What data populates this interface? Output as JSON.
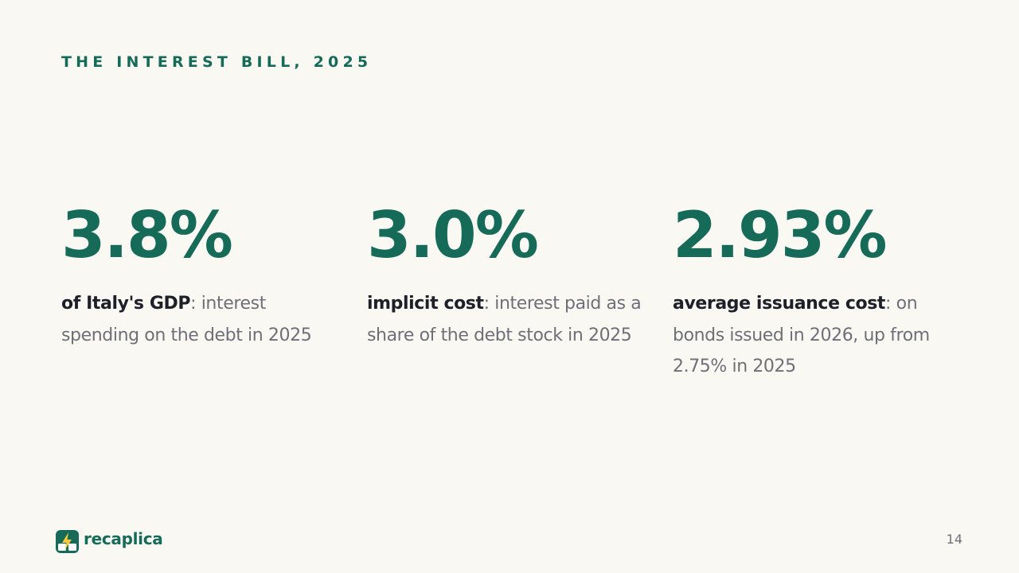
{
  "slide": {
    "eyebrow": "THE INTEREST BILL, 2025",
    "page_number": "14"
  },
  "stats": [
    {
      "value": "3.8%",
      "emphasis": "of Italy's GDP",
      "rest": ": interest spending on the debt in 2025"
    },
    {
      "value": "3.0%",
      "emphasis": "implicit cost",
      "rest": ": interest paid as a share of the debt stock in 2025"
    },
    {
      "value": "2.93%",
      "emphasis": "average issuance cost",
      "rest": ": on bonds issued in 2026, up from 2.75% in 2025"
    }
  ],
  "brand": {
    "name": "recaplica",
    "icon": "book-lightning-logo-icon"
  },
  "colors": {
    "accent": "#166b58",
    "background": "#f9f8f3",
    "text_dark": "#1d2029",
    "text_muted": "#6e6f78",
    "logo_bolt": "#f5c940"
  }
}
